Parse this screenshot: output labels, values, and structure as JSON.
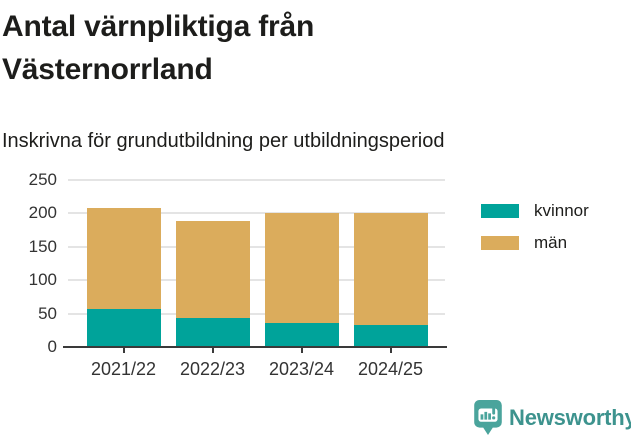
{
  "header": {
    "title": "Antal värnpliktiga från Västernorrland",
    "subtitle": "Inskrivna för grundutbildning per utbildningsperiod"
  },
  "chart_data": {
    "type": "bar",
    "stacked": true,
    "title": "Antal värnpliktiga från Västernorrland",
    "subtitle": "Inskrivna för grundutbildning per utbildningsperiod",
    "categories": [
      "2021/22",
      "2022/23",
      "2023/24",
      "2024/25"
    ],
    "series": [
      {
        "name": "kvinnor",
        "color": "#00a39a",
        "values": [
          57,
          43,
          36,
          33
        ]
      },
      {
        "name": "män",
        "color": "#dbac5c",
        "values": [
          151,
          145,
          165,
          167
        ]
      }
    ],
    "stack_totals": [
      208,
      188,
      201,
      200
    ],
    "ylim": [
      0,
      250
    ],
    "yticks": [
      0,
      50,
      100,
      150,
      200,
      250
    ],
    "grid": true,
    "legend_position": "right"
  },
  "legend": {
    "items": [
      {
        "label": "kvinnor",
        "color": "#00a39a"
      },
      {
        "label": "män",
        "color": "#dbac5c"
      }
    ]
  },
  "branding": {
    "name": "Newsworthy",
    "text_color": "#3d938e",
    "bubble_color": "#4aa49c"
  },
  "colors": {
    "background": "#ffffff",
    "title_text": "#1d1d1b",
    "axis_text": "#333333",
    "gridline": "#e4e4e4",
    "axis_line": "#3a3a3a"
  }
}
